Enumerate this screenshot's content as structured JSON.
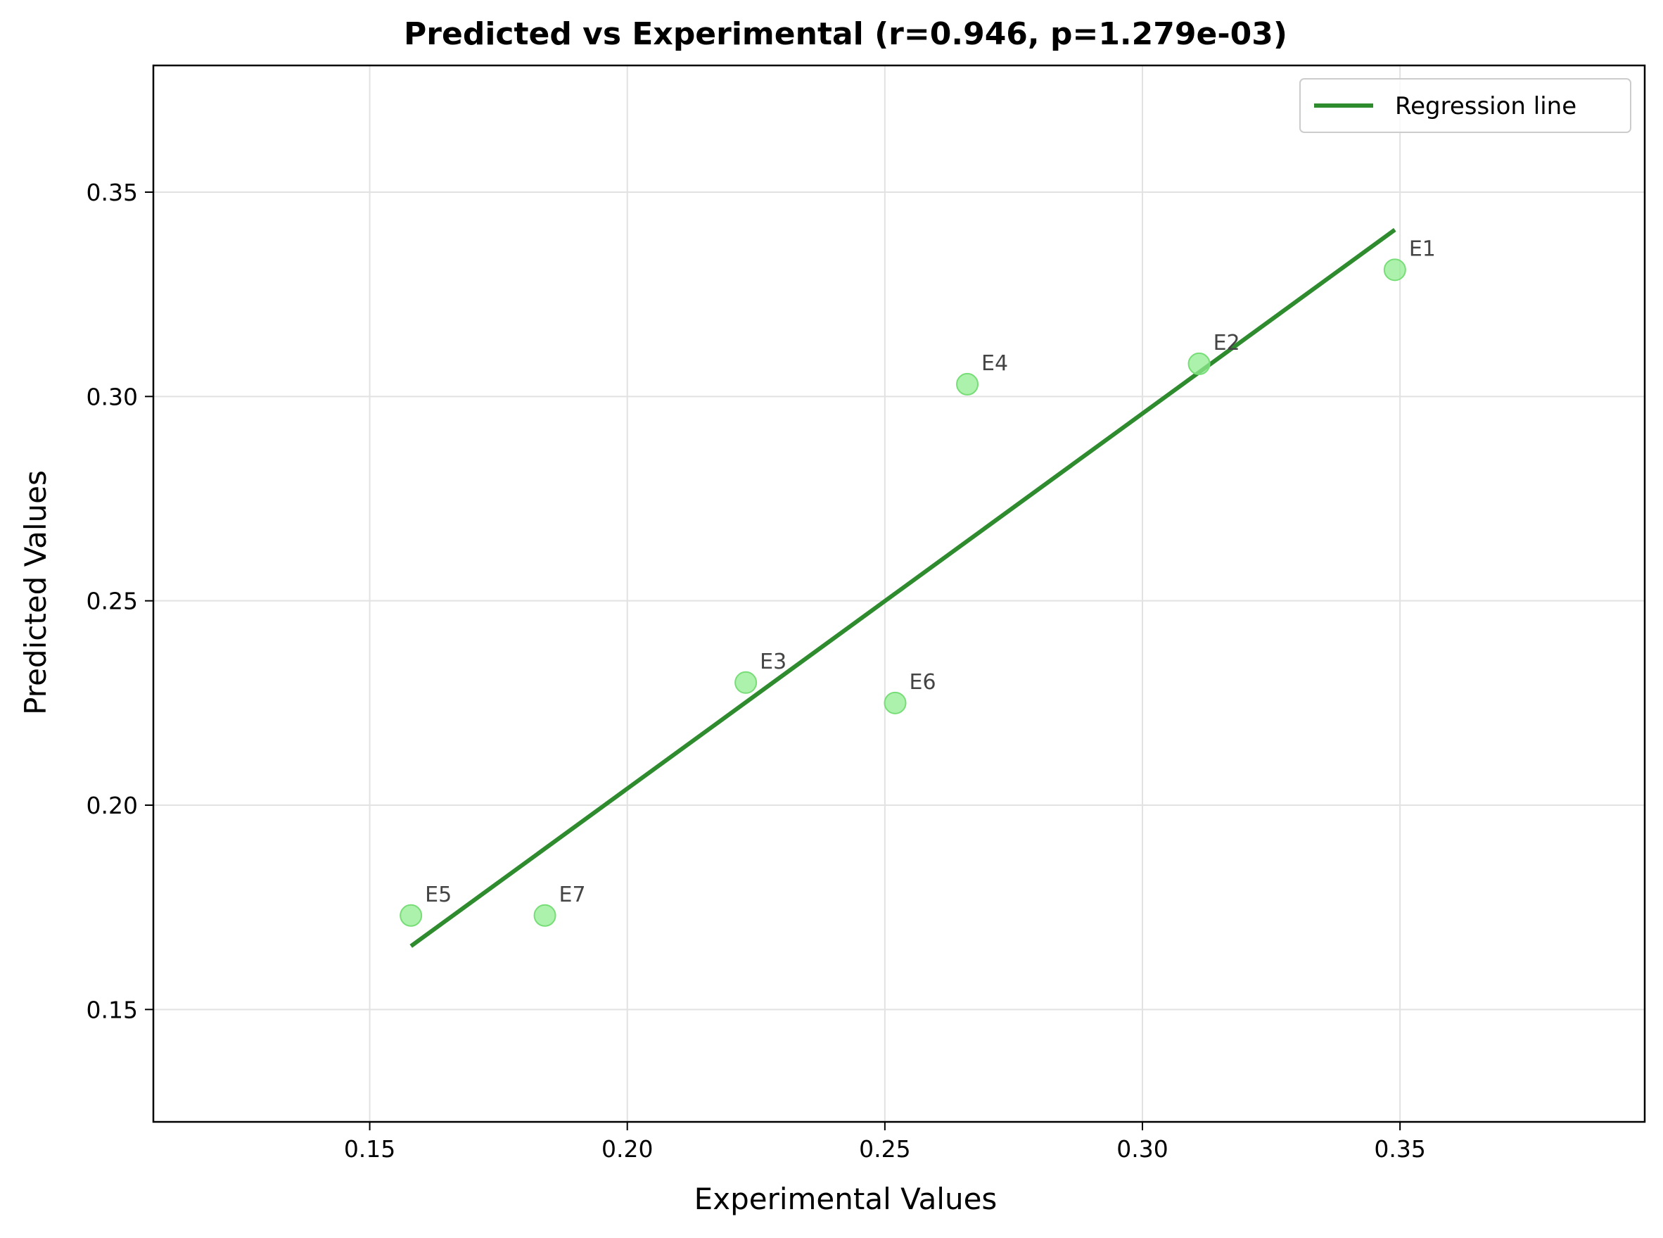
{
  "chart_data": {
    "type": "scatter",
    "title": "Predicted vs Experimental (r=0.946, p=1.279e-03)",
    "xlabel": "Experimental Values",
    "ylabel": "Predicted Values",
    "xlim": [
      0.108,
      0.3975
    ],
    "ylim": [
      0.1225,
      0.381
    ],
    "xticks": [
      0.15,
      0.2,
      0.25,
      0.3,
      0.35
    ],
    "yticks": [
      0.15,
      0.2,
      0.25,
      0.3,
      0.35
    ],
    "xtick_labels": [
      "0.15",
      "0.20",
      "0.25",
      "0.30",
      "0.35"
    ],
    "ytick_labels": [
      "0.15",
      "0.20",
      "0.25",
      "0.30",
      "0.35"
    ],
    "grid": true,
    "points": [
      {
        "label": "E1",
        "x": 0.349,
        "y": 0.331
      },
      {
        "label": "E2",
        "x": 0.311,
        "y": 0.308
      },
      {
        "label": "E3",
        "x": 0.223,
        "y": 0.23
      },
      {
        "label": "E4",
        "x": 0.266,
        "y": 0.303
      },
      {
        "label": "E5",
        "x": 0.158,
        "y": 0.173
      },
      {
        "label": "E6",
        "x": 0.252,
        "y": 0.225
      },
      {
        "label": "E7",
        "x": 0.184,
        "y": 0.173
      }
    ],
    "regression_line": {
      "x": [
        0.158,
        0.349
      ],
      "y": [
        0.1655,
        0.3408
      ]
    },
    "legend": {
      "position": "top-right",
      "entries": [
        "Regression line"
      ]
    },
    "colors": {
      "point_fill": "#90ee90",
      "point_edge": "#77dd77",
      "line": "#2e8b2e",
      "grid": "#e2e2e2",
      "point_label": "#444444"
    }
  }
}
